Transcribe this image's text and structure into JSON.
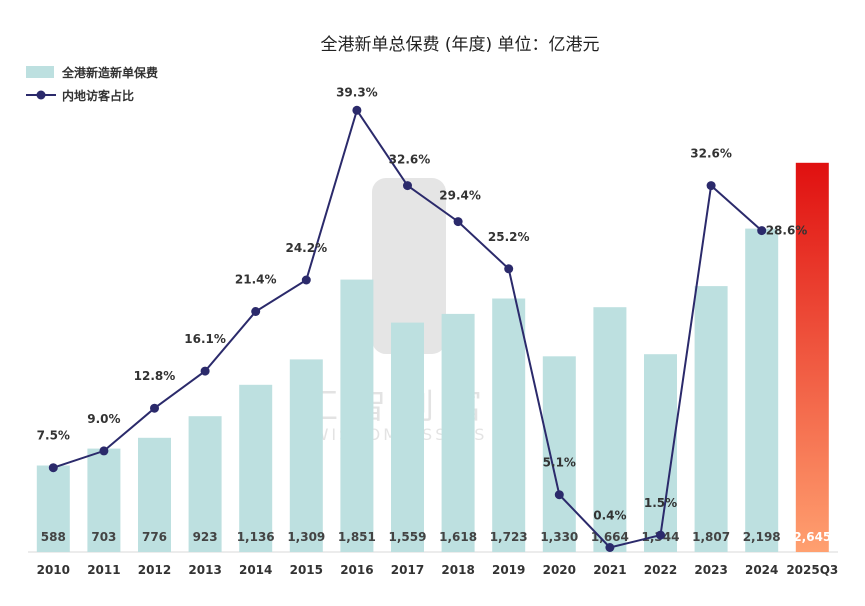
{
  "chart_data": {
    "type": "bar",
    "title": "全港新单总保费 (年度)    单位：亿港元",
    "categories": [
      "2010",
      "2011",
      "2012",
      "2013",
      "2014",
      "2015",
      "2016",
      "2017",
      "2018",
      "2019",
      "2020",
      "2021",
      "2022",
      "2023",
      "2024",
      "2025Q3"
    ],
    "series": [
      {
        "name": "全港新造新单保费",
        "kind": "bar",
        "values": [
          588,
          703,
          776,
          923,
          1136,
          1309,
          1851,
          1559,
          1618,
          1723,
          1330,
          1664,
          1344,
          1807,
          2198,
          2645
        ],
        "labels": [
          "588",
          "703",
          "776",
          "923",
          "1,136",
          "1,309",
          "1,851",
          "1,559",
          "1,618",
          "1,723",
          "1,330",
          "1,664",
          "1,344",
          "1,807",
          "2,198",
          "2,645"
        ],
        "color": "#bde0e0"
      },
      {
        "name": "内地访客占比",
        "kind": "line",
        "values": [
          7.5,
          9.0,
          12.8,
          16.1,
          21.4,
          24.2,
          39.3,
          32.6,
          29.4,
          25.2,
          5.1,
          0.4,
          1.5,
          32.6,
          28.6,
          null
        ],
        "labels": [
          "7.5%",
          "9.0%",
          "12.8%",
          "16.1%",
          "21.4%",
          "24.2%",
          "39.3%",
          "32.6%",
          "29.4%",
          "25.2%",
          "5.1%",
          "0.4%",
          "1.5%",
          "32.6%",
          "28.6%",
          ""
        ],
        "color": "#2b2a6b"
      }
    ],
    "highlight": {
      "category": "2025Q3",
      "color_top": "#e01010",
      "color_bottom": "#ffa070"
    },
    "ylim_bar": [
      0,
      2800
    ],
    "ylim_line": [
      0,
      42
    ],
    "legend_position": "top-left"
  }
}
